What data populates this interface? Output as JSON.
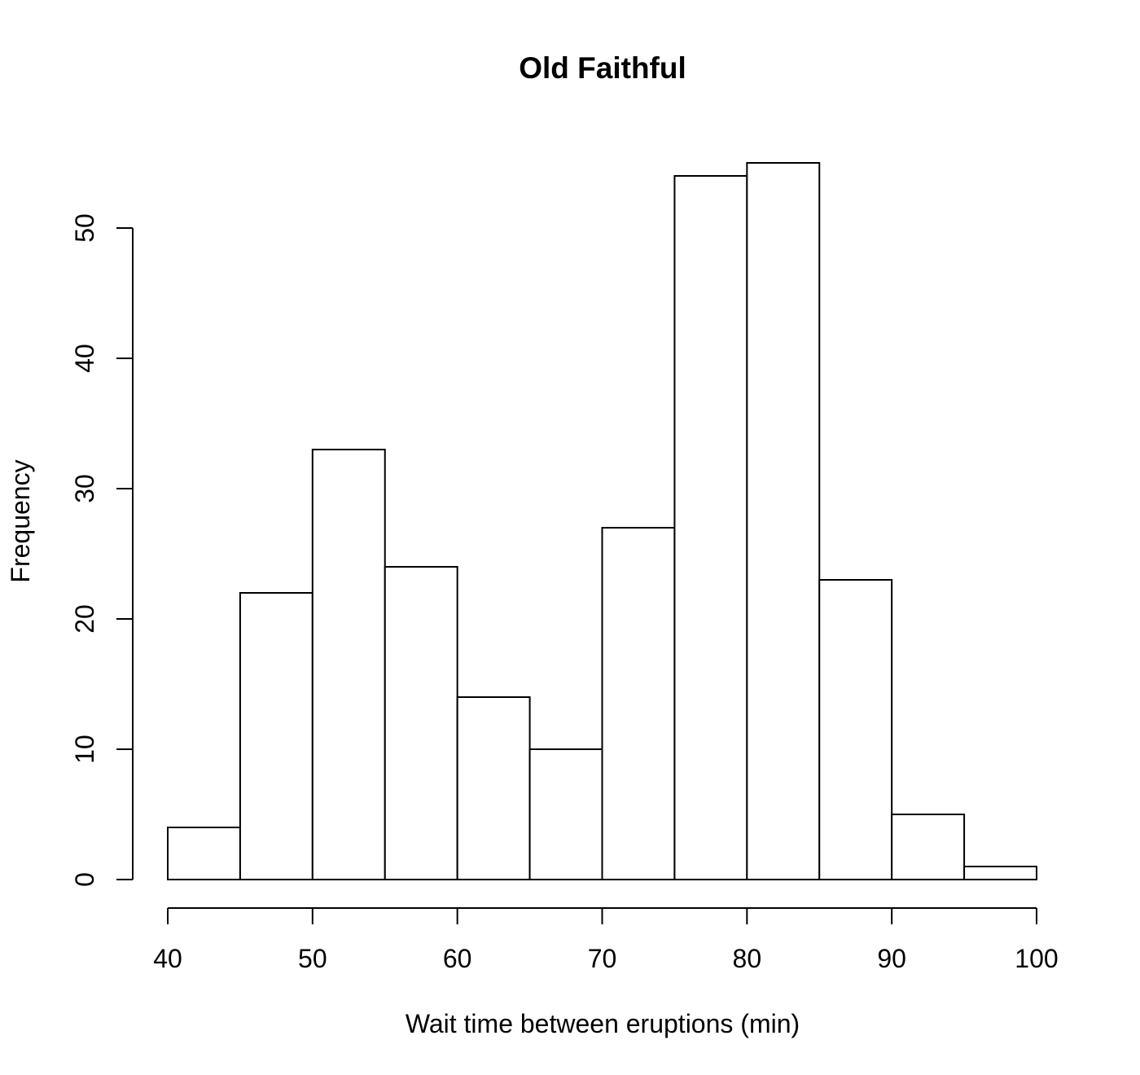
{
  "chart_data": {
    "type": "bar",
    "subtype": "histogram",
    "title": "Old Faithful",
    "xlabel": "Wait time between eruptions (min)",
    "ylabel": "Frequency",
    "bins": [
      {
        "start": 40,
        "end": 45,
        "count": 4
      },
      {
        "start": 45,
        "end": 50,
        "count": 22
      },
      {
        "start": 50,
        "end": 55,
        "count": 33
      },
      {
        "start": 55,
        "end": 60,
        "count": 24
      },
      {
        "start": 60,
        "end": 65,
        "count": 14
      },
      {
        "start": 65,
        "end": 70,
        "count": 10
      },
      {
        "start": 70,
        "end": 75,
        "count": 27
      },
      {
        "start": 75,
        "end": 80,
        "count": 54
      },
      {
        "start": 80,
        "end": 85,
        "count": 55
      },
      {
        "start": 85,
        "end": 90,
        "count": 23
      },
      {
        "start": 90,
        "end": 95,
        "count": 5
      },
      {
        "start": 95,
        "end": 100,
        "count": 1
      }
    ],
    "xlim": [
      40,
      100
    ],
    "ylim": [
      0,
      55
    ],
    "xticks": [
      40,
      50,
      60,
      70,
      80,
      90,
      100
    ],
    "yticks": [
      0,
      10,
      20,
      30,
      40,
      50
    ],
    "bar_fill": "#ffffff",
    "bar_stroke": "#000000",
    "grid": false,
    "legend": "none"
  }
}
